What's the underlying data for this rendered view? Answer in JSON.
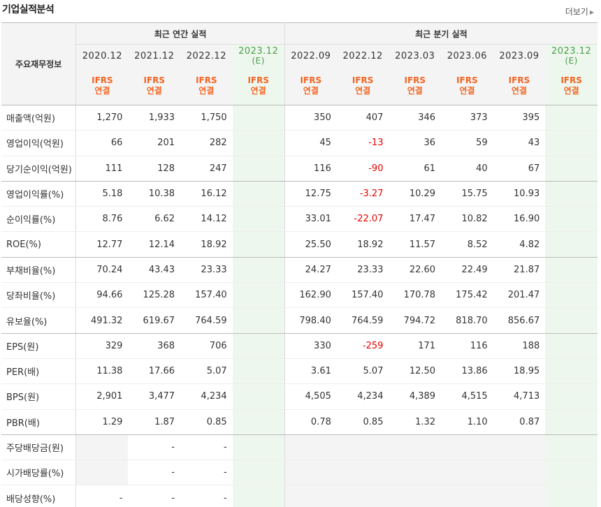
{
  "header": {
    "title": "기업실적분석",
    "more_label": "더보기"
  },
  "table": {
    "label_header": "주요재무정보",
    "annual_group": "최근 연간 실적",
    "quarter_group": "최근 분기 실적",
    "ifrs_line1": "IFRS",
    "ifrs_line2": "연결",
    "annual_periods": [
      "2020.12",
      "2021.12",
      "2022.12",
      "2023.12"
    ],
    "quarter_periods": [
      "2022.09",
      "2022.12",
      "2023.03",
      "2023.06",
      "2023.09",
      "2023.12"
    ],
    "estimate_mark": "(E)",
    "rows": [
      {
        "label": "매출액(억원)",
        "annual": [
          "1,270",
          "1,933",
          "1,750",
          ""
        ],
        "quarter": [
          "350",
          "407",
          "346",
          "373",
          "395",
          ""
        ]
      },
      {
        "label": "영업이익(억원)",
        "annual": [
          "66",
          "201",
          "282",
          ""
        ],
        "quarter": [
          "45",
          "-13",
          "36",
          "59",
          "43",
          ""
        ]
      },
      {
        "label": "당기순이익(억원)",
        "annual": [
          "111",
          "128",
          "247",
          ""
        ],
        "quarter": [
          "116",
          "-90",
          "61",
          "40",
          "67",
          ""
        ]
      },
      {
        "label": "영업이익률(%)",
        "annual": [
          "5.18",
          "10.38",
          "16.12",
          ""
        ],
        "quarter": [
          "12.75",
          "-3.27",
          "10.29",
          "15.75",
          "10.93",
          ""
        ]
      },
      {
        "label": "순이익률(%)",
        "annual": [
          "8.76",
          "6.62",
          "14.12",
          ""
        ],
        "quarter": [
          "33.01",
          "-22.07",
          "17.47",
          "10.82",
          "16.90",
          ""
        ]
      },
      {
        "label": "ROE(%)",
        "annual": [
          "12.77",
          "12.14",
          "18.92",
          ""
        ],
        "quarter": [
          "25.50",
          "18.92",
          "11.57",
          "8.52",
          "4.82",
          ""
        ]
      },
      {
        "label": "부채비율(%)",
        "annual": [
          "70.24",
          "43.43",
          "23.33",
          ""
        ],
        "quarter": [
          "24.27",
          "23.33",
          "22.60",
          "22.49",
          "21.87",
          ""
        ]
      },
      {
        "label": "당좌비율(%)",
        "annual": [
          "94.66",
          "125.28",
          "157.40",
          ""
        ],
        "quarter": [
          "162.90",
          "157.40",
          "170.78",
          "175.42",
          "201.47",
          ""
        ]
      },
      {
        "label": "유보율(%)",
        "annual": [
          "491.32",
          "619.67",
          "764.59",
          ""
        ],
        "quarter": [
          "798.40",
          "764.59",
          "794.72",
          "818.70",
          "856.67",
          ""
        ]
      },
      {
        "label": "EPS(원)",
        "annual": [
          "329",
          "368",
          "706",
          ""
        ],
        "quarter": [
          "330",
          "-259",
          "171",
          "116",
          "188",
          ""
        ]
      },
      {
        "label": "PER(배)",
        "annual": [
          "11.38",
          "17.66",
          "5.07",
          ""
        ],
        "quarter": [
          "3.61",
          "5.07",
          "12.50",
          "13.86",
          "18.95",
          ""
        ]
      },
      {
        "label": "BPS(원)",
        "annual": [
          "2,901",
          "3,477",
          "4,234",
          ""
        ],
        "quarter": [
          "4,505",
          "4,234",
          "4,389",
          "4,515",
          "4,713",
          ""
        ]
      },
      {
        "label": "PBR(배)",
        "annual": [
          "1.29",
          "1.87",
          "0.85",
          ""
        ],
        "quarter": [
          "0.78",
          "0.85",
          "1.32",
          "1.10",
          "0.87",
          ""
        ]
      },
      {
        "label": "주당배당금(원)",
        "annual": [
          "",
          "-",
          "-",
          ""
        ],
        "quarter": [
          "",
          "",
          "",
          "",
          "",
          ""
        ]
      },
      {
        "label": "시가배당률(%)",
        "annual": [
          "",
          "-",
          "-",
          ""
        ],
        "quarter": [
          "",
          "",
          "",
          "",
          "",
          ""
        ]
      },
      {
        "label": "배당성향(%)",
        "annual": [
          "-",
          "-",
          "-",
          ""
        ],
        "quarter": [
          "",
          "",
          "",
          "",
          "",
          ""
        ]
      }
    ]
  },
  "colors": {
    "negative": "#e60000",
    "ifrs": "#f26522",
    "estimate": "#4a9e4a"
  }
}
